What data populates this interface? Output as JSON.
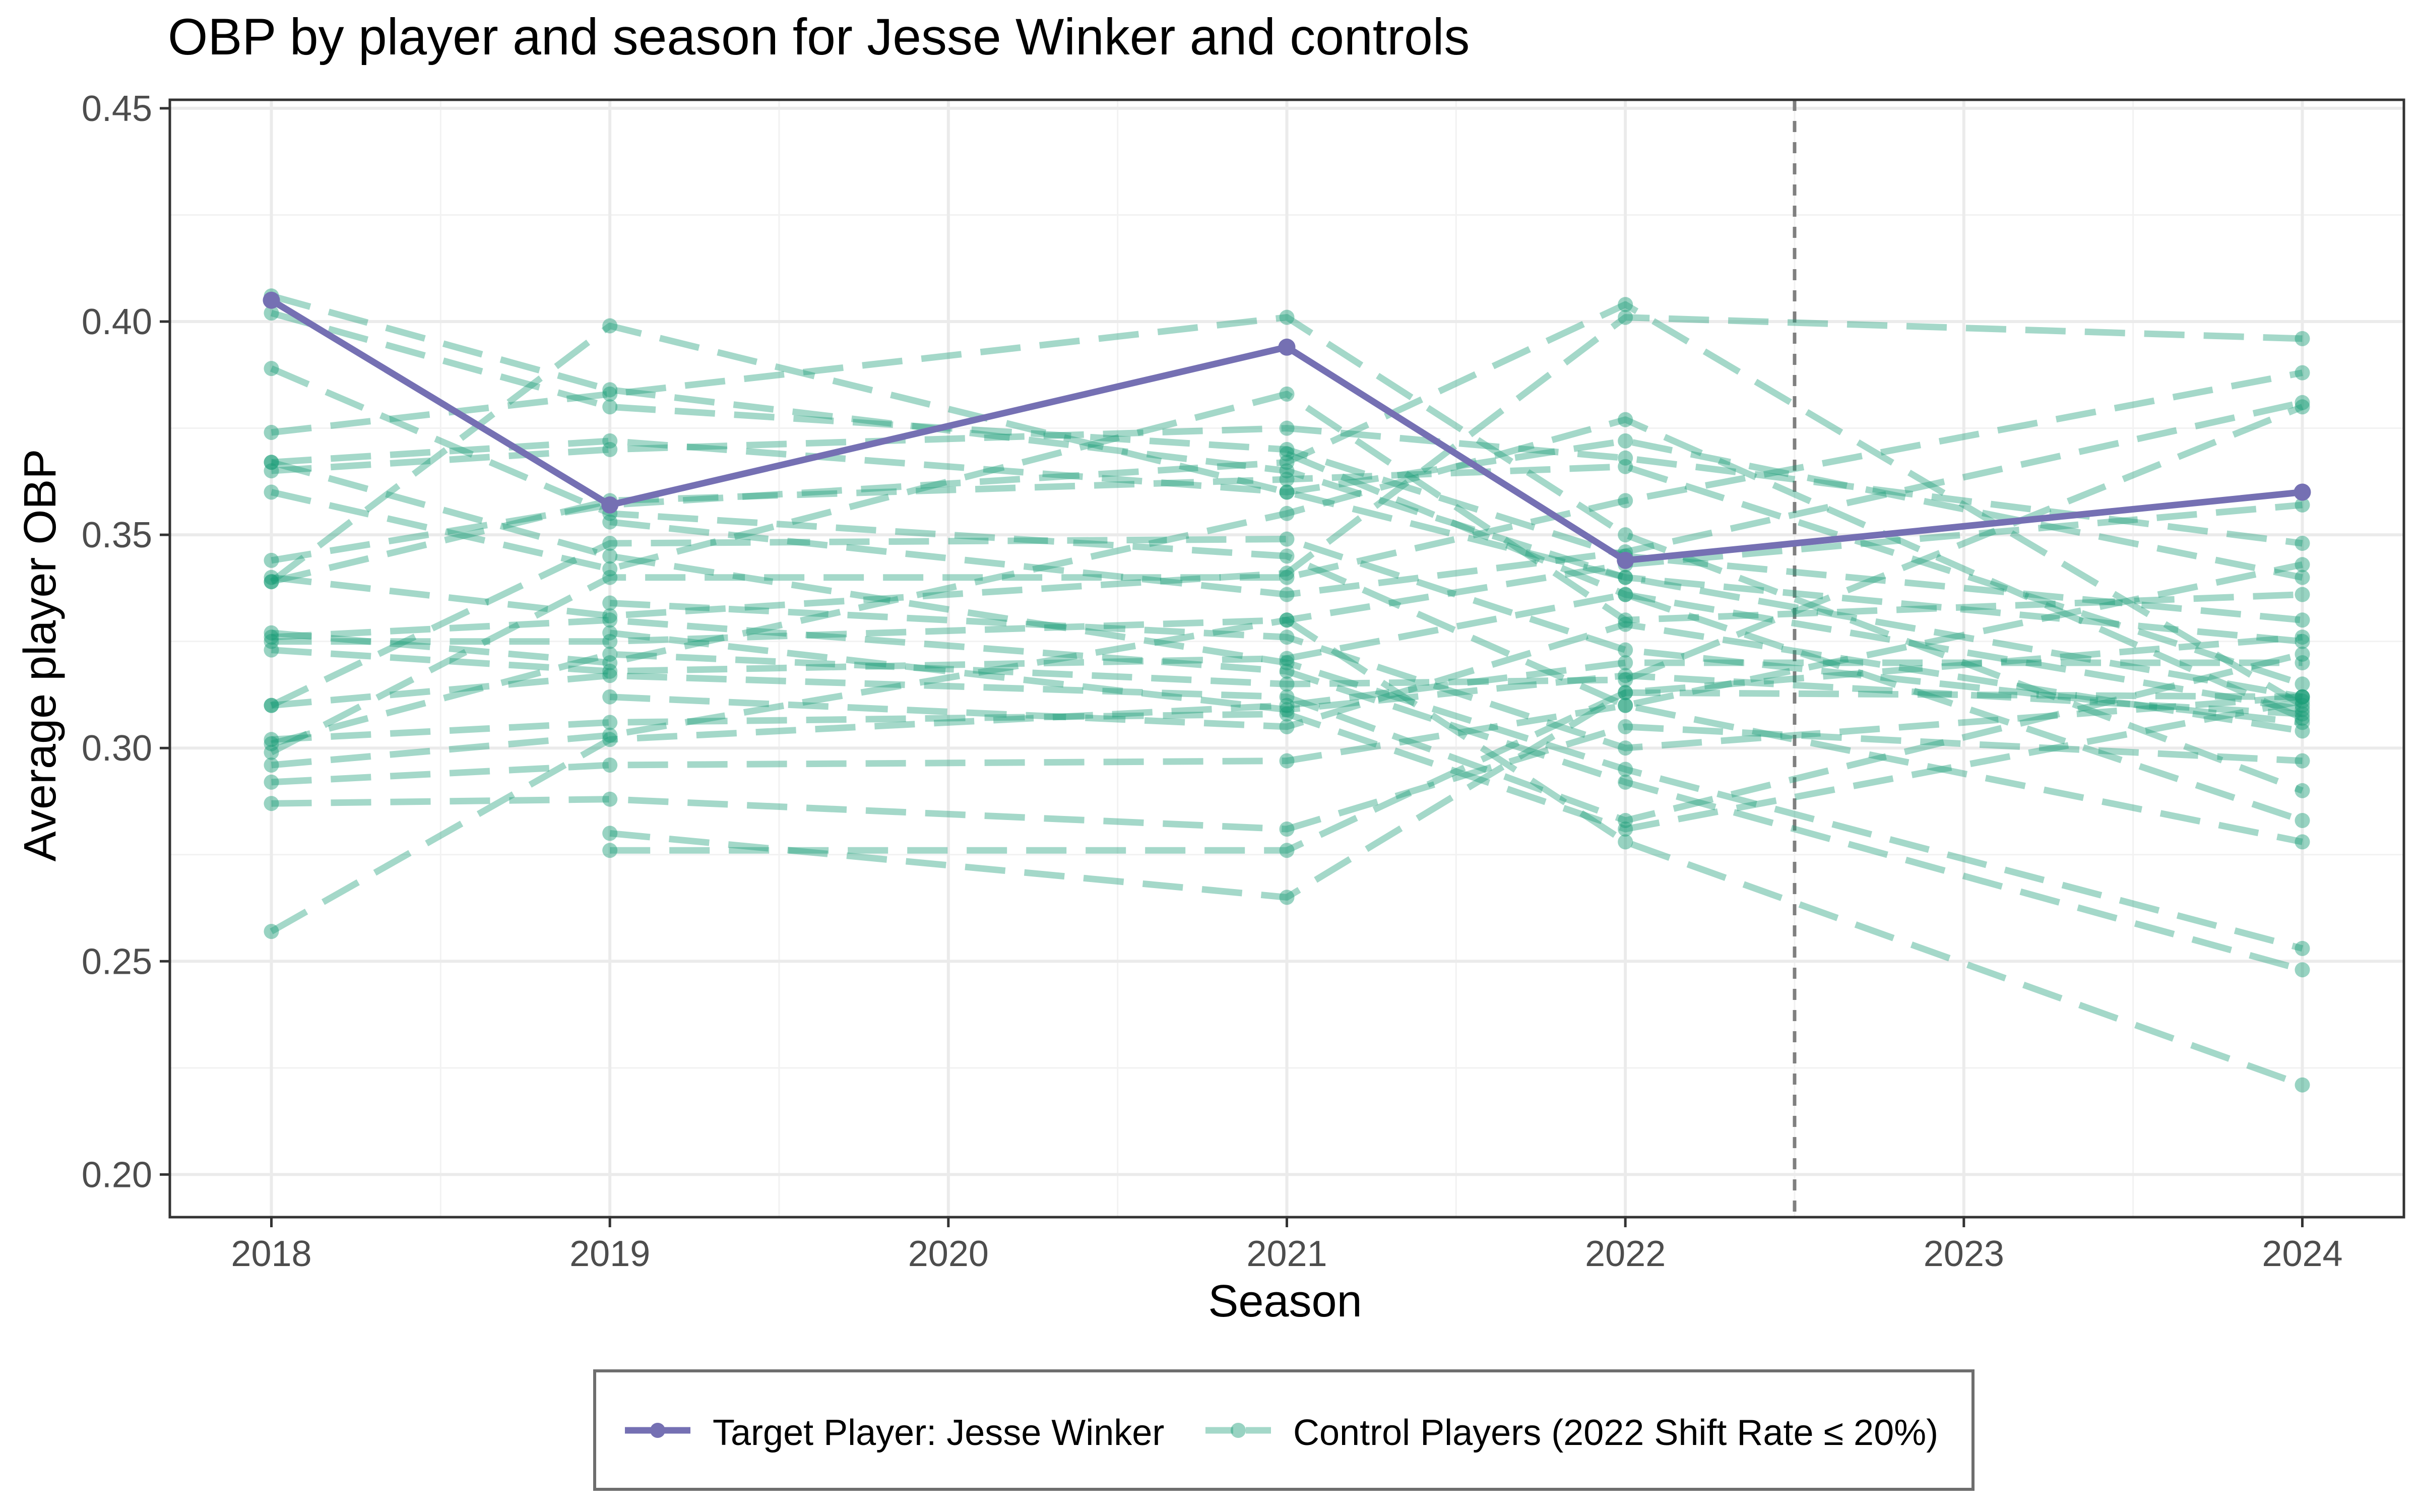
{
  "chart_data": {
    "type": "line",
    "title": "OBP by player and season for Jesse Winker and controls",
    "xlabel": "Season",
    "ylabel": "Average player OBP",
    "xlim": [
      2017.7,
      2024.3
    ],
    "ylim": [
      0.19,
      0.452
    ],
    "x_ticks": [
      "2018",
      "2019",
      "2020",
      "2021",
      "2022",
      "2023",
      "2024"
    ],
    "y_ticks": [
      "0.20",
      "0.25",
      "0.30",
      "0.35",
      "0.40",
      "0.45"
    ],
    "grid": true,
    "vline_x": 2022.5,
    "legend_position": "bottom",
    "colors": {
      "target": "#7570b3",
      "control": "#1b9e77"
    },
    "target": {
      "name": "Target Player: Jesse Winker",
      "points": [
        [
          2018,
          0.405
        ],
        [
          2019,
          0.357
        ],
        [
          2021,
          0.394
        ],
        [
          2022,
          0.344
        ],
        [
          2024,
          0.36
        ]
      ]
    },
    "controls_legend": "Control Players (2022 Shift Rate ≤ 20%)",
    "controls": [
      [
        [
          2018,
          0.406
        ],
        [
          2019,
          0.384
        ],
        [
          2021,
          0.365
        ],
        [
          2022,
          0.34
        ],
        [
          2024,
          0.325
        ]
      ],
      [
        [
          2018,
          0.402
        ],
        [
          2019,
          0.38
        ],
        [
          2021,
          0.37
        ],
        [
          2022,
          0.345
        ],
        [
          2024,
          0.33
        ]
      ],
      [
        [
          2018,
          0.389
        ],
        [
          2019,
          0.355
        ],
        [
          2021,
          0.345
        ],
        [
          2022,
          0.31
        ],
        [
          2024,
          0.278
        ]
      ],
      [
        [
          2018,
          0.374
        ],
        [
          2019,
          0.383
        ],
        [
          2021,
          0.401
        ],
        [
          2022,
          0.35
        ],
        [
          2024,
          0.29
        ]
      ],
      [
        [
          2018,
          0.367
        ],
        [
          2019,
          0.372
        ],
        [
          2021,
          0.36
        ],
        [
          2022,
          0.372
        ],
        [
          2024,
          0.34
        ]
      ],
      [
        [
          2018,
          0.367
        ],
        [
          2019,
          0.345
        ],
        [
          2021,
          0.32
        ],
        [
          2022,
          0.295
        ],
        [
          2024,
          0.253
        ]
      ],
      [
        [
          2018,
          0.365
        ],
        [
          2019,
          0.37
        ],
        [
          2021,
          0.375
        ],
        [
          2022,
          0.368
        ],
        [
          2024,
          0.348
        ]
      ],
      [
        [
          2018,
          0.36
        ],
        [
          2019,
          0.342
        ],
        [
          2021,
          0.383
        ],
        [
          2022,
          0.33
        ],
        [
          2024,
          0.336
        ]
      ],
      [
        [
          2018,
          0.344
        ],
        [
          2019,
          0.357
        ],
        [
          2021,
          0.367
        ],
        [
          2022,
          0.404
        ],
        [
          2024,
          0.31
        ]
      ],
      [
        [
          2018,
          0.34
        ],
        [
          2019,
          0.331
        ],
        [
          2021,
          0.341
        ],
        [
          2022,
          0.401
        ],
        [
          2024,
          0.396
        ]
      ],
      [
        [
          2018,
          0.339
        ],
        [
          2019,
          0.358
        ],
        [
          2021,
          0.363
        ],
        [
          2022,
          0.366
        ],
        [
          2024,
          0.315
        ]
      ],
      [
        [
          2018,
          0.339
        ],
        [
          2019,
          0.399
        ],
        [
          2021,
          0.36
        ],
        [
          2022,
          0.34
        ],
        [
          2024,
          0.312
        ]
      ],
      [
        [
          2018,
          0.327
        ],
        [
          2019,
          0.32
        ],
        [
          2021,
          0.355
        ],
        [
          2022,
          0.377
        ],
        [
          2024,
          0.307
        ]
      ],
      [
        [
          2018,
          0.326
        ],
        [
          2019,
          0.33
        ],
        [
          2021,
          0.318
        ],
        [
          2022,
          0.292
        ],
        [
          2024,
          0.248
        ]
      ],
      [
        [
          2018,
          0.325
        ],
        [
          2019,
          0.325
        ],
        [
          2021,
          0.33
        ],
        [
          2022,
          0.278
        ],
        [
          2024,
          0.221
        ]
      ],
      [
        [
          2018,
          0.323
        ],
        [
          2019,
          0.318
        ],
        [
          2021,
          0.321
        ],
        [
          2022,
          0.336
        ],
        [
          2024,
          0.283
        ]
      ],
      [
        [
          2018,
          0.31
        ],
        [
          2019,
          0.348
        ],
        [
          2021,
          0.349
        ],
        [
          2022,
          0.323
        ],
        [
          2024,
          0.306
        ]
      ],
      [
        [
          2018,
          0.31
        ],
        [
          2019,
          0.317
        ],
        [
          2021,
          0.312
        ],
        [
          2022,
          0.283
        ],
        [
          2024,
          0.322
        ]
      ],
      [
        [
          2018,
          0.302
        ],
        [
          2019,
          0.306
        ],
        [
          2021,
          0.308
        ],
        [
          2022,
          0.281
        ],
        [
          2024,
          0.311
        ]
      ],
      [
        [
          2018,
          0.301
        ],
        [
          2019,
          0.322
        ],
        [
          2021,
          0.315
        ],
        [
          2022,
          0.316
        ],
        [
          2024,
          0.38
        ]
      ],
      [
        [
          2018,
          0.299
        ],
        [
          2019,
          0.34
        ],
        [
          2021,
          0.34
        ],
        [
          2022,
          0.358
        ],
        [
          2024,
          0.388
        ]
      ],
      [
        [
          2018,
          0.296
        ],
        [
          2019,
          0.303
        ],
        [
          2021,
          0.33
        ],
        [
          2022,
          0.343
        ],
        [
          2024,
          0.357
        ]
      ],
      [
        [
          2018,
          0.292
        ],
        [
          2019,
          0.296
        ],
        [
          2021,
          0.297
        ],
        [
          2022,
          0.31
        ],
        [
          2024,
          0.343
        ]
      ],
      [
        [
          2018,
          0.287
        ],
        [
          2019,
          0.288
        ],
        [
          2021,
          0.281
        ],
        [
          2022,
          0.305
        ],
        [
          2024,
          0.297
        ]
      ],
      [
        [
          2018,
          0.257
        ],
        [
          2019,
          0.302
        ],
        [
          2021,
          0.31
        ],
        [
          2022,
          0.32
        ],
        [
          2024,
          0.32
        ]
      ],
      [
        [
          2019,
          0.353
        ],
        [
          2021,
          0.336
        ],
        [
          2022,
          0.346
        ],
        [
          2024,
          0.381
        ]
      ],
      [
        [
          2019,
          0.334
        ],
        [
          2021,
          0.326
        ],
        [
          2022,
          0.3
        ],
        [
          2024,
          0.312
        ]
      ],
      [
        [
          2019,
          0.327
        ],
        [
          2021,
          0.309
        ],
        [
          2022,
          0.317
        ],
        [
          2024,
          0.308
        ]
      ],
      [
        [
          2019,
          0.312
        ],
        [
          2021,
          0.305
        ],
        [
          2022,
          0.329
        ],
        [
          2024,
          0.304
        ]
      ],
      [
        [
          2019,
          0.28
        ],
        [
          2021,
          0.265
        ],
        [
          2022,
          0.313
        ],
        [
          2024,
          0.312
        ]
      ],
      [
        [
          2019,
          0.276
        ],
        [
          2021,
          0.276
        ],
        [
          2022,
          0.313
        ],
        [
          2024,
          0.326
        ]
      ],
      [
        [
          2021,
          0.369
        ],
        [
          2022,
          0.336
        ],
        [
          2024,
          0.309
        ]
      ]
    ]
  }
}
